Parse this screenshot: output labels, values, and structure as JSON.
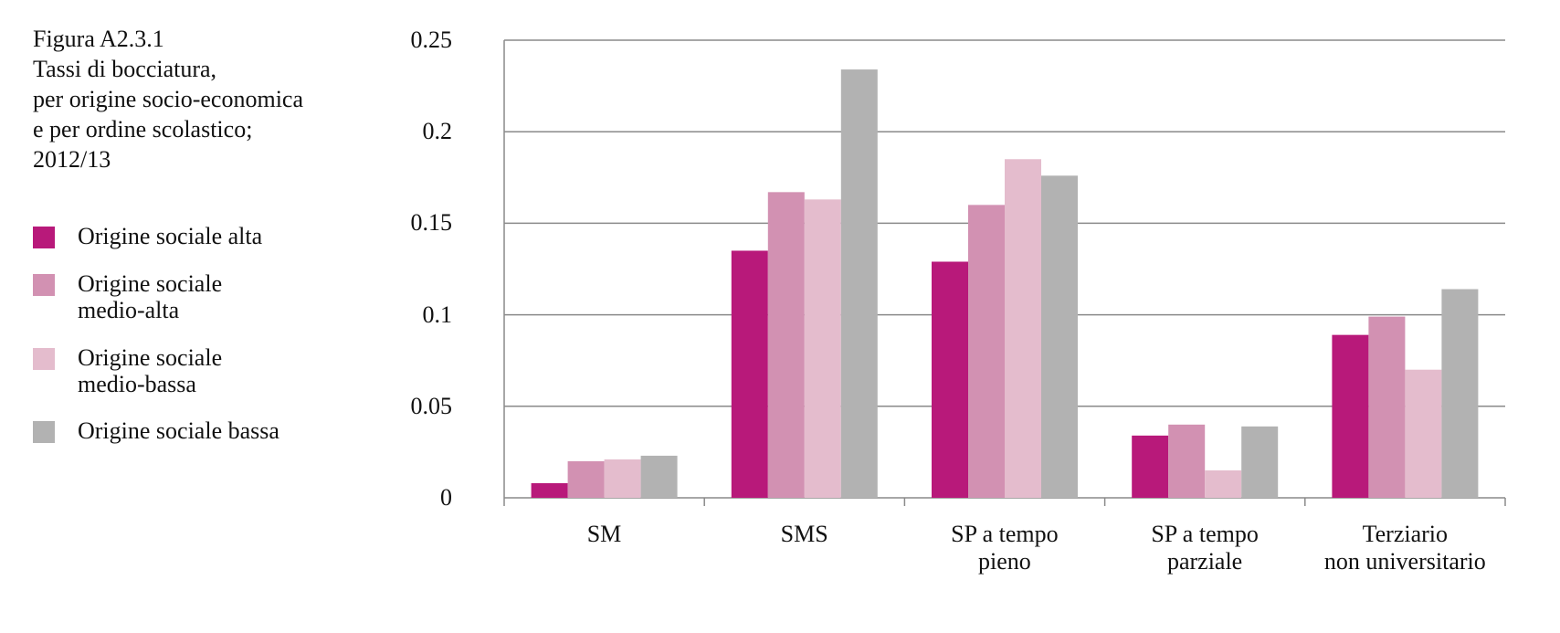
{
  "chart_data": {
    "type": "bar",
    "title": "Figura A2.3.1\nTassi di bocciatura,\nper origine socio-economica\ne per ordine scolastico;\n2012/13",
    "categories": [
      "SM",
      "SMS",
      "SP a tempo\npieno",
      "SP a tempo\nparziale",
      "Terziario\nnon universitario"
    ],
    "series": [
      {
        "name": "Origine sociale alta",
        "color": "#b8197a",
        "values": [
          0.008,
          0.135,
          0.129,
          0.034,
          0.089
        ]
      },
      {
        "name": "Origine sociale\nmedio-alta",
        "color": "#d291b2",
        "values": [
          0.02,
          0.167,
          0.16,
          0.04,
          0.099
        ]
      },
      {
        "name": "Origine sociale\nmedio-bassa",
        "color": "#e4bccd",
        "values": [
          0.021,
          0.163,
          0.185,
          0.015,
          0.07
        ]
      },
      {
        "name": "Origine sociale bassa",
        "color": "#b2b2b2",
        "values": [
          0.023,
          0.234,
          0.176,
          0.039,
          0.114
        ]
      }
    ],
    "ylim": [
      0,
      0.25
    ],
    "yticks": [
      0,
      0.05,
      0.1,
      0.15,
      0.2,
      0.25
    ],
    "grid": true
  }
}
